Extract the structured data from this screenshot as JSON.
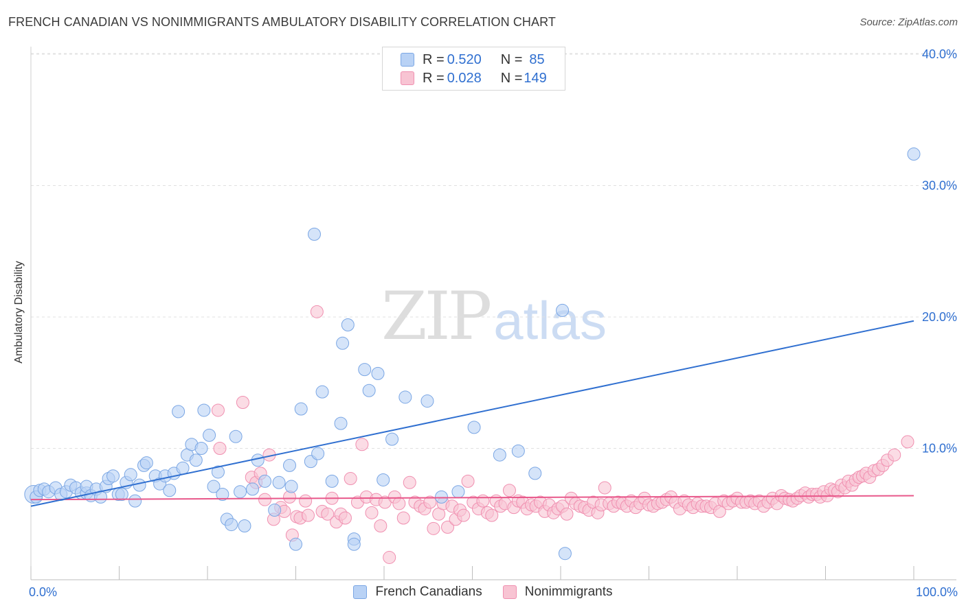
{
  "header": {
    "title": "FRENCH CANADIAN VS NONIMMIGRANTS AMBULATORY DISABILITY CORRELATION CHART",
    "source": "Source: ZipAtlas.com"
  },
  "watermark": {
    "zip": "ZIP",
    "atlas": "atlas"
  },
  "legend": {
    "series1": {
      "r_label": "R = ",
      "r_value": "0.520",
      "n_label": "N = ",
      "n_value": "85"
    },
    "series2": {
      "r_label": "R = ",
      "r_value": "0.028",
      "n_label": "N = ",
      "n_value": "149"
    }
  },
  "bottom_legend": [
    "French Canadians",
    "Nonimmigrants"
  ],
  "chart_data": {
    "type": "scatter",
    "title": "FRENCH CANADIAN VS NONIMMIGRANTS AMBULATORY DISABILITY CORRELATION CHART",
    "xlabel": "",
    "ylabel": "Ambulatory Disability",
    "x_tick_labels": [
      "0.0%",
      "100.0%"
    ],
    "y_tick_labels": [
      "10.0%",
      "20.0%",
      "30.0%",
      "40.0%"
    ],
    "xlim": [
      0,
      100
    ],
    "ylim": [
      0,
      41
    ],
    "grid": true,
    "legend_position": "top-center",
    "colors": {
      "french_canadians_fill": "#b9d2f5",
      "french_canadians_stroke": "#7aa6e4",
      "french_canadians_line": "#2f6fd0",
      "nonimmigrants_fill": "#f8c4d3",
      "nonimmigrants_stroke": "#f08fb0",
      "nonimmigrants_line": "#e8578a",
      "axis_text": "#2f6fd0"
    },
    "series": [
      {
        "name": "French Canadians",
        "r": 0.52,
        "n": 85,
        "trend": {
          "x": [
            0,
            100
          ],
          "y": [
            5.6,
            19.7
          ]
        },
        "points": [
          [
            0.3,
            6.5
          ],
          [
            0.6,
            6.3
          ],
          [
            1.0,
            6.8
          ],
          [
            1.5,
            6.9
          ],
          [
            2.0,
            6.7
          ],
          [
            2.8,
            7.0
          ],
          [
            3.4,
            6.5
          ],
          [
            4.0,
            6.7
          ],
          [
            4.5,
            7.2
          ],
          [
            5.1,
            7.0
          ],
          [
            5.7,
            6.6
          ],
          [
            6.3,
            6.6
          ],
          [
            6.3,
            7.1
          ],
          [
            6.8,
            6.4
          ],
          [
            7.4,
            6.9
          ],
          [
            7.9,
            6.3
          ],
          [
            8.5,
            7.1
          ],
          [
            8.8,
            7.7
          ],
          [
            9.3,
            7.9
          ],
          [
            9.9,
            6.5
          ],
          [
            10.3,
            6.5
          ],
          [
            10.8,
            7.4
          ],
          [
            11.3,
            8.0
          ],
          [
            11.8,
            6.0
          ],
          [
            12.3,
            7.2
          ],
          [
            12.8,
            8.7
          ],
          [
            13.1,
            8.9
          ],
          [
            14.1,
            7.9
          ],
          [
            14.6,
            7.3
          ],
          [
            15.2,
            7.9
          ],
          [
            15.7,
            6.8
          ],
          [
            16.2,
            8.1
          ],
          [
            16.7,
            12.8
          ],
          [
            17.2,
            8.5
          ],
          [
            17.7,
            9.5
          ],
          [
            18.2,
            10.3
          ],
          [
            18.7,
            9.1
          ],
          [
            19.3,
            10.0
          ],
          [
            19.6,
            12.9
          ],
          [
            20.2,
            11.0
          ],
          [
            20.7,
            7.1
          ],
          [
            21.2,
            8.2
          ],
          [
            21.7,
            6.5
          ],
          [
            22.2,
            4.6
          ],
          [
            22.7,
            4.2
          ],
          [
            23.2,
            10.9
          ],
          [
            23.7,
            6.7
          ],
          [
            24.2,
            4.1
          ],
          [
            25.1,
            6.9
          ],
          [
            25.7,
            9.1
          ],
          [
            26.5,
            7.5
          ],
          [
            27.6,
            5.3
          ],
          [
            28.1,
            7.4
          ],
          [
            29.3,
            8.7
          ],
          [
            29.5,
            7.1
          ],
          [
            30.0,
            2.7
          ],
          [
            30.6,
            13.0
          ],
          [
            31.7,
            9.0
          ],
          [
            32.1,
            26.3
          ],
          [
            32.5,
            9.6
          ],
          [
            33.0,
            14.3
          ],
          [
            34.1,
            7.5
          ],
          [
            35.1,
            11.9
          ],
          [
            35.3,
            18.0
          ],
          [
            35.9,
            19.4
          ],
          [
            36.6,
            3.1
          ],
          [
            36.6,
            2.7
          ],
          [
            37.8,
            16.0
          ],
          [
            38.3,
            14.4
          ],
          [
            39.3,
            15.7
          ],
          [
            39.9,
            7.6
          ],
          [
            40.9,
            10.7
          ],
          [
            42.4,
            13.9
          ],
          [
            44.9,
            13.6
          ],
          [
            46.5,
            6.3
          ],
          [
            48.4,
            6.7
          ],
          [
            50.2,
            11.6
          ],
          [
            53.1,
            9.5
          ],
          [
            55.2,
            9.8
          ],
          [
            57.1,
            8.1
          ],
          [
            60.2,
            20.5
          ],
          [
            60.5,
            2.0
          ],
          [
            100.0,
            32.4
          ]
        ]
      },
      {
        "name": "Nonimmigrants",
        "r": 0.028,
        "n": 149,
        "trend": {
          "x": [
            0,
            100
          ],
          "y": [
            6.1,
            6.4
          ]
        },
        "points": [
          [
            21.2,
            12.9
          ],
          [
            21.4,
            10.0
          ],
          [
            24.0,
            13.5
          ],
          [
            25.0,
            7.8
          ],
          [
            25.5,
            7.4
          ],
          [
            26.0,
            8.1
          ],
          [
            26.5,
            6.1
          ],
          [
            27.0,
            9.5
          ],
          [
            27.5,
            4.6
          ],
          [
            28.3,
            5.5
          ],
          [
            28.7,
            5.2
          ],
          [
            29.3,
            6.3
          ],
          [
            29.6,
            3.4
          ],
          [
            30.1,
            4.8
          ],
          [
            30.5,
            4.7
          ],
          [
            31.1,
            6.0
          ],
          [
            31.4,
            4.9
          ],
          [
            32.4,
            20.4
          ],
          [
            33.0,
            5.2
          ],
          [
            33.6,
            5.0
          ],
          [
            34.1,
            6.2
          ],
          [
            34.6,
            4.4
          ],
          [
            35.1,
            5.0
          ],
          [
            35.6,
            4.7
          ],
          [
            36.2,
            7.7
          ],
          [
            37.0,
            5.9
          ],
          [
            37.5,
            10.3
          ],
          [
            38.0,
            6.3
          ],
          [
            38.6,
            5.1
          ],
          [
            39.1,
            6.1
          ],
          [
            39.6,
            4.1
          ],
          [
            40.1,
            5.9
          ],
          [
            40.6,
            1.7
          ],
          [
            41.2,
            6.3
          ],
          [
            41.7,
            5.8
          ],
          [
            42.2,
            4.7
          ],
          [
            42.9,
            7.4
          ],
          [
            43.5,
            5.9
          ],
          [
            44.1,
            5.6
          ],
          [
            44.6,
            5.4
          ],
          [
            45.2,
            5.9
          ],
          [
            45.6,
            3.9
          ],
          [
            46.2,
            5.0
          ],
          [
            46.7,
            5.8
          ],
          [
            47.2,
            4.0
          ],
          [
            47.7,
            5.6
          ],
          [
            48.1,
            4.6
          ],
          [
            48.6,
            5.3
          ],
          [
            49.0,
            4.9
          ],
          [
            49.5,
            7.5
          ],
          [
            50.1,
            5.9
          ],
          [
            50.7,
            5.4
          ],
          [
            51.2,
            6.0
          ],
          [
            51.7,
            5.1
          ],
          [
            52.2,
            4.9
          ],
          [
            52.7,
            6.0
          ],
          [
            53.2,
            5.6
          ],
          [
            53.7,
            5.8
          ],
          [
            54.2,
            6.8
          ],
          [
            54.7,
            5.5
          ],
          [
            55.2,
            6.0
          ],
          [
            55.7,
            5.9
          ],
          [
            56.2,
            5.4
          ],
          [
            56.7,
            5.7
          ],
          [
            57.2,
            5.6
          ],
          [
            57.7,
            5.9
          ],
          [
            58.2,
            5.2
          ],
          [
            58.7,
            5.7
          ],
          [
            59.2,
            5.1
          ],
          [
            59.7,
            5.4
          ],
          [
            60.2,
            5.6
          ],
          [
            60.7,
            5.0
          ],
          [
            61.2,
            6.2
          ],
          [
            61.7,
            5.8
          ],
          [
            62.2,
            5.6
          ],
          [
            62.7,
            5.5
          ],
          [
            63.2,
            5.3
          ],
          [
            63.7,
            5.9
          ],
          [
            64.2,
            5.1
          ],
          [
            64.6,
            5.7
          ],
          [
            65.0,
            7.0
          ],
          [
            65.5,
            5.8
          ],
          [
            66.0,
            5.6
          ],
          [
            66.5,
            5.9
          ],
          [
            67.0,
            5.8
          ],
          [
            67.5,
            5.6
          ],
          [
            68.0,
            6.0
          ],
          [
            68.5,
            5.5
          ],
          [
            69.0,
            5.8
          ],
          [
            69.5,
            6.2
          ],
          [
            70.0,
            5.7
          ],
          [
            70.5,
            5.6
          ],
          [
            71.0,
            5.8
          ],
          [
            71.5,
            5.9
          ],
          [
            72.0,
            6.1
          ],
          [
            72.5,
            6.3
          ],
          [
            73.0,
            5.9
          ],
          [
            73.5,
            5.4
          ],
          [
            74.0,
            6.0
          ],
          [
            74.5,
            5.7
          ],
          [
            75.0,
            5.5
          ],
          [
            75.5,
            5.8
          ],
          [
            76.0,
            5.6
          ],
          [
            76.5,
            5.6
          ],
          [
            77.0,
            5.5
          ],
          [
            77.5,
            5.8
          ],
          [
            78.0,
            5.2
          ],
          [
            78.5,
            6.0
          ],
          [
            79.0,
            5.8
          ],
          [
            79.5,
            6.0
          ],
          [
            80.0,
            6.2
          ],
          [
            80.5,
            5.9
          ],
          [
            81.0,
            5.9
          ],
          [
            81.5,
            6.0
          ],
          [
            82.0,
            5.8
          ],
          [
            82.5,
            6.0
          ],
          [
            83.0,
            5.6
          ],
          [
            83.5,
            5.9
          ],
          [
            84.0,
            6.2
          ],
          [
            84.5,
            5.8
          ],
          [
            85.0,
            6.4
          ],
          [
            85.4,
            6.2
          ],
          [
            85.9,
            6.1
          ],
          [
            86.3,
            6.0
          ],
          [
            86.8,
            6.2
          ],
          [
            87.2,
            6.4
          ],
          [
            87.7,
            6.6
          ],
          [
            88.1,
            6.3
          ],
          [
            88.5,
            6.5
          ],
          [
            89.0,
            6.5
          ],
          [
            89.4,
            6.3
          ],
          [
            89.8,
            6.7
          ],
          [
            90.2,
            6.4
          ],
          [
            90.6,
            6.9
          ],
          [
            91.0,
            6.8
          ],
          [
            91.4,
            6.7
          ],
          [
            91.8,
            7.2
          ],
          [
            92.2,
            7.0
          ],
          [
            92.6,
            7.5
          ],
          [
            93.0,
            7.2
          ],
          [
            93.4,
            7.6
          ],
          [
            93.8,
            7.8
          ],
          [
            94.2,
            7.9
          ],
          [
            94.6,
            8.1
          ],
          [
            95.0,
            7.8
          ],
          [
            95.5,
            8.3
          ],
          [
            96.0,
            8.4
          ],
          [
            96.5,
            8.7
          ],
          [
            97.0,
            9.1
          ],
          [
            97.8,
            9.5
          ],
          [
            99.3,
            10.5
          ]
        ]
      }
    ]
  }
}
